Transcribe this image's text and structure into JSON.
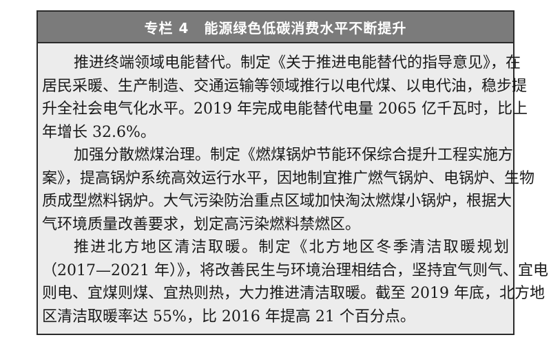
{
  "header": {
    "label": "专栏 4",
    "title": "能源绿色低碳消费水平不断提升"
  },
  "paragraphs": [
    {
      "lines": [
        "推进终端领域电能替代。制定《关于推进电能替代的指导意见》，在",
        "居民采暖、生产制造、交通运输等领域推行以电代煤、以电代油，稳步提",
        "升全社会电气化水平。2019 年完成电能替代电量 2065 亿千瓦时，比上",
        "年增长 32.6%。"
      ]
    },
    {
      "lines": [
        "加强分散燃煤治理。制定《燃煤锅炉节能环保综合提升工程实施方",
        "案》，提高锅炉系统高效运行水平，因地制宜推广燃气锅炉、电锅炉、生物",
        "质成型燃料锅炉。大气污染防治重点区域加快淘汰燃煤小锅炉，根据大",
        "气环境质量改善要求，划定高污染燃料禁燃区。"
      ]
    },
    {
      "lines": [
        "推进北方地区清洁取暖。制定《北方地区冬季清洁取暖规划",
        "（2017—2021 年）》，将改善民生与环境治理相结合，坚持宜气则气、宜电",
        "则电、宜煤则煤、宜热则热，大力推进清洁取暖。截至 2019 年底，北方地",
        "区清洁取暖率达 55%，比 2016 年提高 21 个百分点。"
      ]
    }
  ]
}
